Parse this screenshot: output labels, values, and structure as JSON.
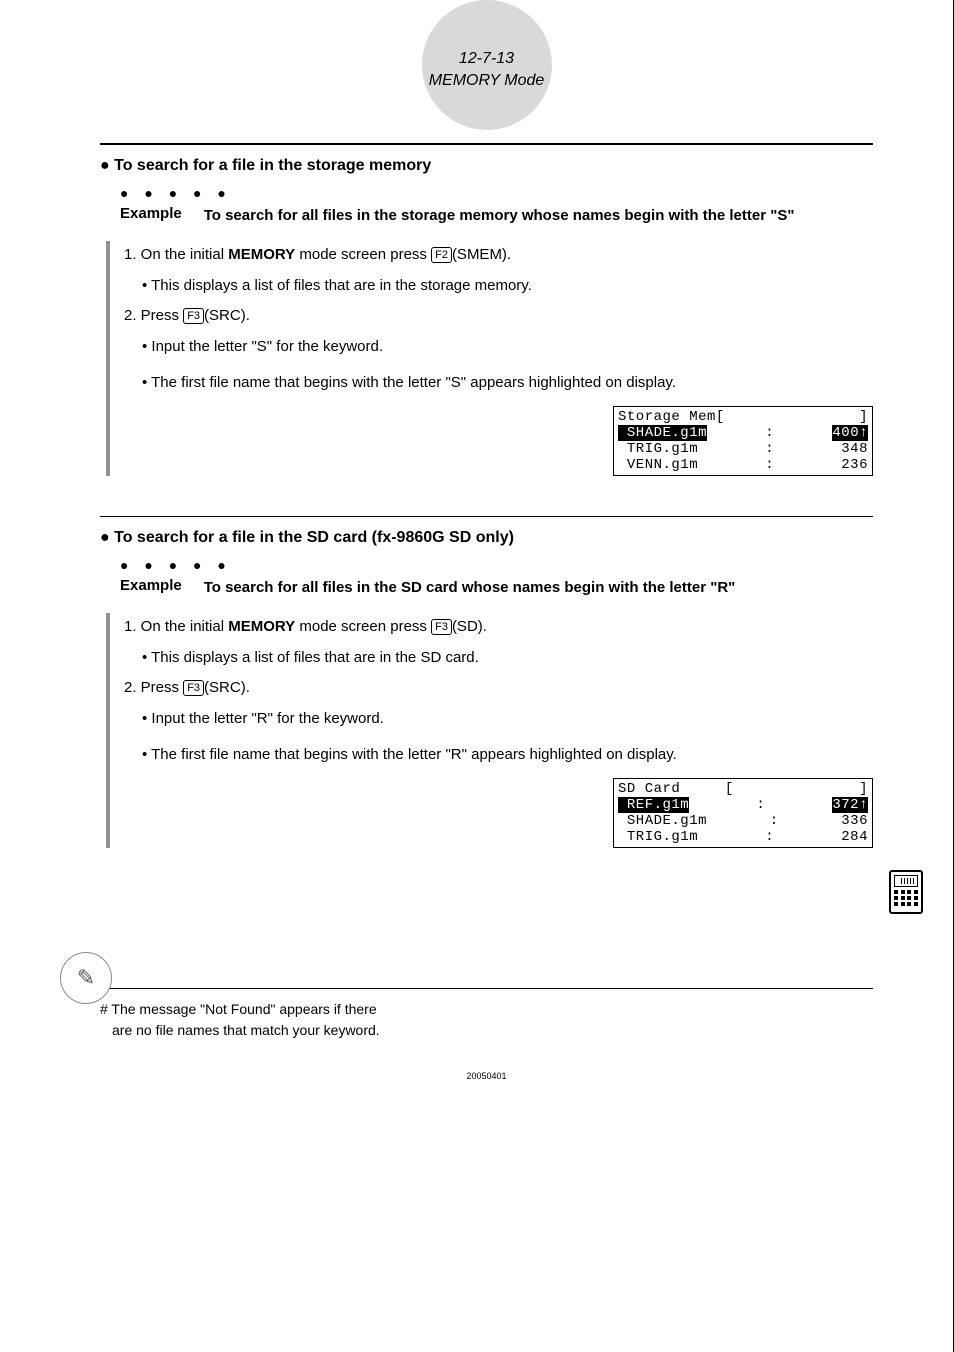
{
  "header": {
    "line1": "12-7-13",
    "line2": "MEMORY Mode"
  },
  "section1": {
    "title": "● To search for a file in the storage memory",
    "dots": "●  ●  ●  ●  ●",
    "example_label": "Example",
    "example_text": "To search for all files in the storage memory whose names begin with the letter \"S\"",
    "step1_prefix": "1. On the initial ",
    "step1_bold": "MEMORY",
    "step1_after": " mode screen press ",
    "step1_key": "F2",
    "step1_tail": "(SMEM).",
    "step1_sub": "• This displays a list of files that are in the storage memory.",
    "step2_prefix": "2. Press ",
    "step2_key": "F3",
    "step2_tail": "(SRC).",
    "step2_sub1": "• Input the letter \"S\" for the keyword.",
    "step2_sub2": "• The first file name that begins with the letter \"S\" appears highlighted on display.",
    "lcd": {
      "title_left": "Storage Mem[",
      "title_right": "]",
      "rows": [
        {
          "name": " SHADE.g1m",
          "sep": ":",
          "size": "400",
          "hl": true,
          "arrow": "↑"
        },
        {
          "name": " TRIG.g1m",
          "sep": ":",
          "size": "348",
          "hl": false,
          "arrow": ""
        },
        {
          "name": " VENN.g1m",
          "sep": ":",
          "size": "236",
          "hl": false,
          "arrow": ""
        }
      ]
    }
  },
  "section2": {
    "title": "● To search for a file in the SD card (fx-9860G SD only)",
    "dots": "●  ●  ●  ●  ●",
    "example_label": "Example",
    "example_text": "To search for all files in the SD card whose names begin with the letter \"R\"",
    "step1_prefix": "1. On the initial ",
    "step1_bold": "MEMORY",
    "step1_after": " mode screen press ",
    "step1_key": "F3",
    "step1_tail": "(SD).",
    "step1_sub": "• This displays a list of files that are in the SD card.",
    "step2_prefix": "2. Press ",
    "step2_key": "F3",
    "step2_tail": "(SRC).",
    "step2_sub1": "• Input the letter \"R\" for the keyword.",
    "step2_sub2": "• The first file name that begins with the letter \"R\" appears highlighted on display.",
    "lcd": {
      "title_left": "SD Card     [",
      "title_right": "]",
      "rows": [
        {
          "name": " REF.g1m",
          "sep": ":",
          "size": "372",
          "hl": true,
          "arrow": "↑"
        },
        {
          "name": " SHADE.g1m",
          "sep": ":",
          "size": "336",
          "hl": false,
          "arrow": ""
        },
        {
          "name": " TRIG.g1m",
          "sep": ":",
          "size": "284",
          "hl": false,
          "arrow": ""
        }
      ]
    }
  },
  "footnote": {
    "line1": "# The message \"Not Found\" appears if there",
    "line2": "are no file names that match your keyword."
  },
  "page_id": "20050401",
  "pencil_glyph": "✎"
}
